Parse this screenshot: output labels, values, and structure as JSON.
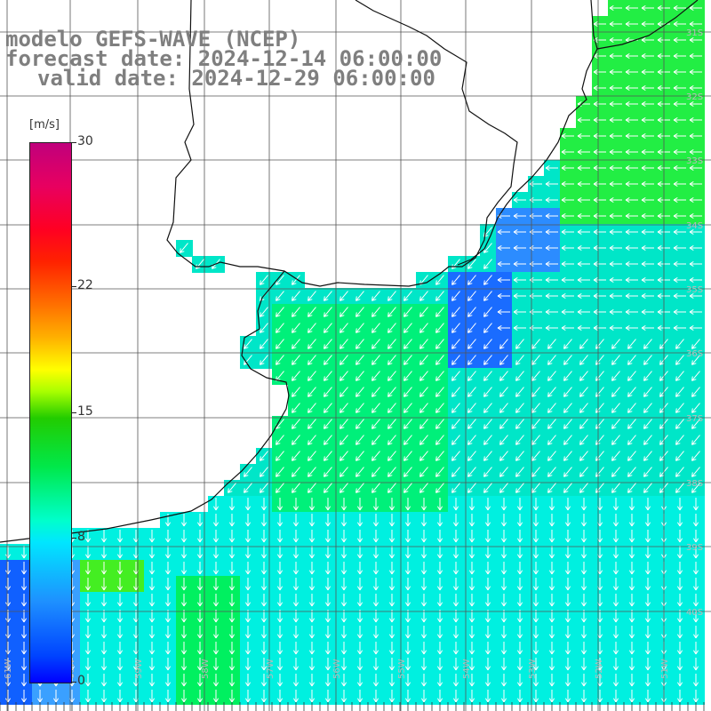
{
  "title": {
    "line1": "modelo GEFS-WAVE (NCEP)",
    "line2": "forecast date: 2024-12-14 06:00:00",
    "line3": "valid date: 2024-12-29 06:00:00"
  },
  "colorbar": {
    "units": "[m/s]",
    "ticks": [
      "30",
      "22",
      "15",
      "8",
      "0"
    ],
    "tick_values": [
      30,
      22,
      15,
      8,
      0
    ],
    "min": 0,
    "max": 30
  },
  "map": {
    "lat_labels": [
      "31S",
      "32S",
      "33S",
      "34S",
      "35S",
      "36S",
      "37S",
      "38S",
      "39S",
      "40S"
    ],
    "lon_labels": [
      "61W",
      "60W",
      "59W",
      "58W",
      "57W",
      "56W",
      "55W",
      "54W",
      "53W",
      "52W",
      "51W"
    ],
    "field": "wind speed with wind direction arrows"
  }
}
